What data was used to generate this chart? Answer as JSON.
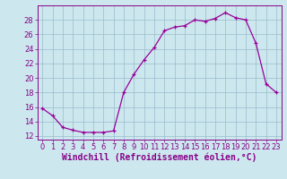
{
  "x": [
    0,
    1,
    2,
    3,
    4,
    5,
    6,
    7,
    8,
    9,
    10,
    11,
    12,
    13,
    14,
    15,
    16,
    17,
    18,
    19,
    20,
    21,
    22,
    23
  ],
  "y": [
    15.8,
    14.8,
    13.2,
    12.8,
    12.5,
    12.5,
    12.5,
    12.7,
    18.0,
    20.5,
    22.5,
    24.2,
    26.5,
    27.0,
    27.2,
    28.0,
    27.8,
    28.2,
    29.0,
    28.3,
    28.0,
    24.8,
    19.2,
    18.0
  ],
  "line_color": "#990099",
  "marker": "+",
  "marker_size": 3.5,
  "marker_linewidth": 0.9,
  "bg_color": "#cce8ee",
  "grid_color": "#99bbcc",
  "xlabel": "Windchill (Refroidissement éolien,°C)",
  "xlabel_fontsize": 7,
  "ylim": [
    11.5,
    30
  ],
  "xlim": [
    -0.5,
    23.5
  ],
  "yticks": [
    12,
    14,
    16,
    18,
    20,
    22,
    24,
    26,
    28
  ],
  "xticks": [
    0,
    1,
    2,
    3,
    4,
    5,
    6,
    7,
    8,
    9,
    10,
    11,
    12,
    13,
    14,
    15,
    16,
    17,
    18,
    19,
    20,
    21,
    22,
    23
  ],
  "tick_fontsize": 6,
  "tick_color": "#880088",
  "axis_color": "#880088",
  "line_width": 0.9
}
